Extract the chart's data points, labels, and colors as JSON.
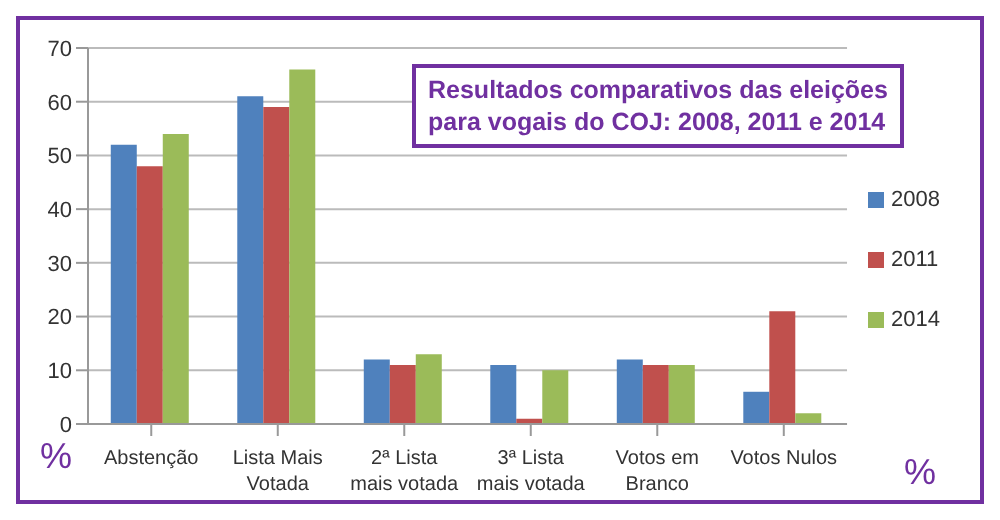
{
  "chart_data": {
    "type": "bar",
    "title": "Resultados comparativos das eleições para vogais do COJ: 2008, 2011 e 2014",
    "categories": [
      "Abstenção",
      "Lista Mais Votada",
      "2ª Lista mais votada",
      "3ª Lista mais votada",
      "Votos em Branco",
      "Votos Nulos"
    ],
    "series": [
      {
        "name": "2008",
        "color": "#4f81bd",
        "values": [
          52,
          61,
          12,
          11,
          12,
          6
        ]
      },
      {
        "name": "2011",
        "color": "#c0504d",
        "values": [
          48,
          59,
          11,
          1,
          11,
          21
        ]
      },
      {
        "name": "2014",
        "color": "#9bbb59",
        "values": [
          54,
          66,
          13,
          10,
          11,
          2
        ]
      }
    ],
    "ylabel": "%",
    "annotations": [
      "%"
    ],
    "ylim": [
      0,
      70
    ],
    "yticks": [
      0,
      10,
      20,
      30,
      40,
      50,
      60,
      70
    ],
    "grid": "y",
    "legend": "right"
  }
}
